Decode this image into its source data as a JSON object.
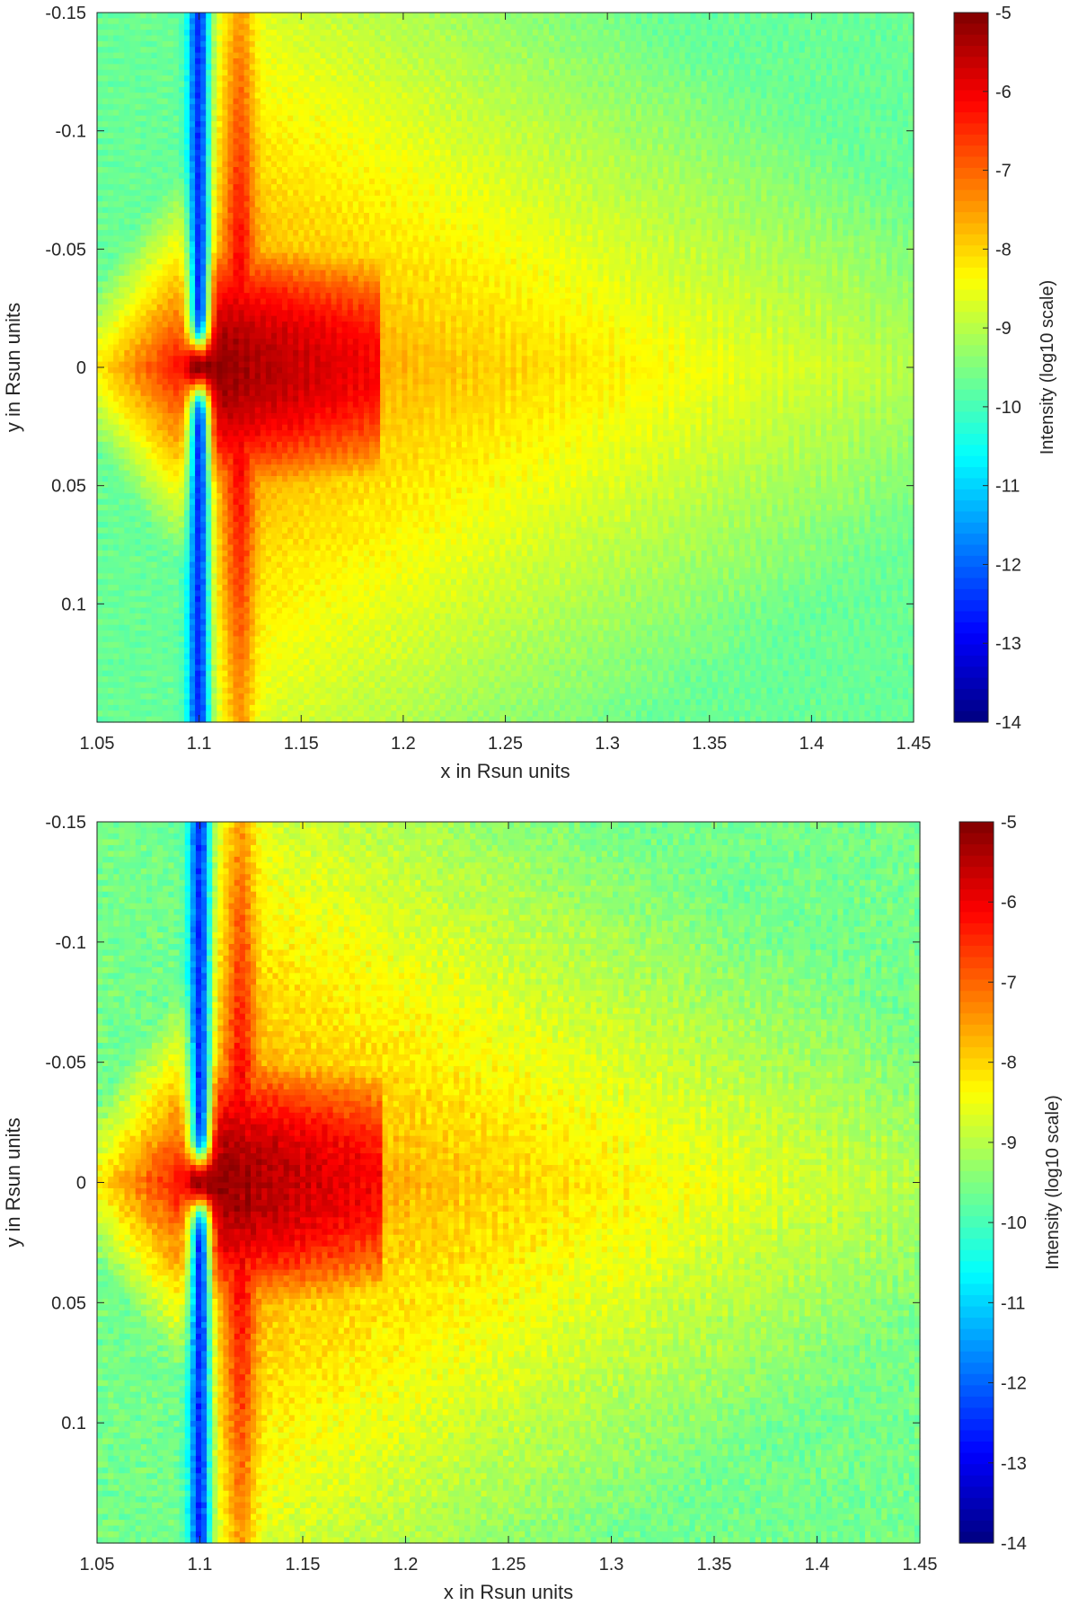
{
  "chart_data": [
    {
      "type": "heatmap",
      "xlabel": "x in Rsun units",
      "ylabel": "y in Rsun units",
      "xlim": [
        1.05,
        1.45
      ],
      "ylim": [
        -0.15,
        0.15
      ],
      "y_direction": "reversed",
      "xticks": [
        1.05,
        1.1,
        1.15,
        1.2,
        1.25,
        1.3,
        1.35,
        1.4,
        1.45
      ],
      "xtick_labels": [
        "1.05",
        "1.1",
        "1.15",
        "1.2",
        "1.25",
        "1.3",
        "1.35",
        "1.4",
        "1.45"
      ],
      "yticks": [
        -0.15,
        -0.1,
        -0.05,
        0,
        0.05,
        0.1
      ],
      "ytick_labels": [
        "-0.15",
        "-0.1",
        "-0.05",
        "0",
        "0.05",
        "0.1"
      ],
      "colormap": "jet",
      "colorbar": {
        "label": "Intensity (log10 scale)",
        "range": [
          -14,
          -5
        ],
        "ticks": [
          -5,
          -6,
          -7,
          -8,
          -9,
          -10,
          -11,
          -12,
          -13,
          -14
        ],
        "tick_labels": [
          "-5",
          "-6",
          "-7",
          "-8",
          "-9",
          "-10",
          "-11",
          "-12",
          "-13",
          "-14"
        ]
      },
      "features": {
        "peak_intensity": -5,
        "peak_location": [
          1.105,
          0
        ],
        "dark_band_x": 1.1,
        "dark_band_intensity": -12.5,
        "bright_ridge_x": 1.12,
        "background_intensity": -9.7
      }
    },
    {
      "type": "heatmap",
      "xlabel": "x in Rsun units",
      "ylabel": "y in Rsun units",
      "xlim": [
        1.05,
        1.45
      ],
      "ylim": [
        -0.15,
        0.15
      ],
      "y_direction": "reversed",
      "xticks": [
        1.05,
        1.1,
        1.15,
        1.2,
        1.25,
        1.3,
        1.35,
        1.4,
        1.45
      ],
      "xtick_labels": [
        "1.05",
        "1.1",
        "1.15",
        "1.2",
        "1.25",
        "1.3",
        "1.35",
        "1.4",
        "1.45"
      ],
      "yticks": [
        -0.15,
        -0.1,
        -0.05,
        0,
        0.05,
        0.1
      ],
      "ytick_labels": [
        "-0.15",
        "-0.1",
        "-0.05",
        "0",
        "0.05",
        "0.1"
      ],
      "colormap": "jet",
      "colorbar": {
        "label": "Intensity (log10 scale)",
        "range": [
          -14,
          -5
        ],
        "ticks": [
          -5,
          -6,
          -7,
          -8,
          -9,
          -10,
          -11,
          -12,
          -13,
          -14
        ],
        "tick_labels": [
          "-5",
          "-6",
          "-7",
          "-8",
          "-9",
          "-10",
          "-11",
          "-12",
          "-13",
          "-14"
        ]
      },
      "features": {
        "peak_intensity": -5,
        "peak_location": [
          1.105,
          0
        ],
        "dark_band_x": 1.1,
        "dark_band_intensity": -12.5,
        "bright_ridge_x": 1.12,
        "background_intensity": -9.6
      }
    }
  ]
}
